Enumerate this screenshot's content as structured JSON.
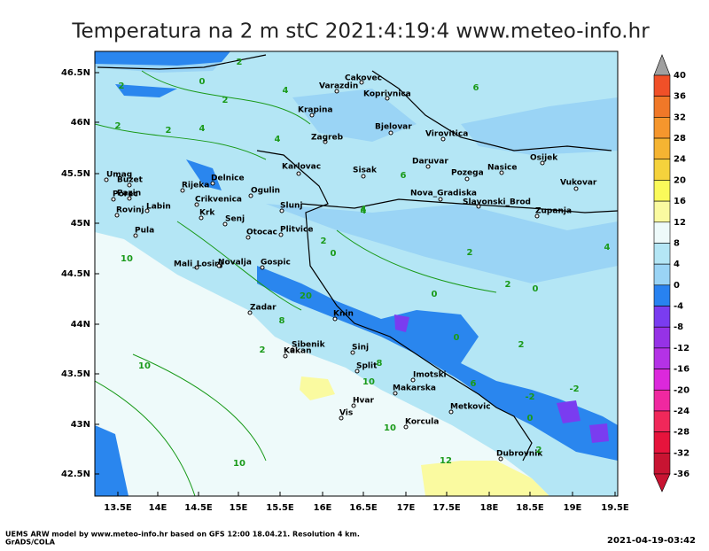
{
  "header": {
    "title": "Temperatura na 2 m stC 2021:4:19:4 www.meteo-info.hr"
  },
  "map": {
    "lon_ticks": [
      "13.5E",
      "14E",
      "14.5E",
      "15E",
      "15.5E",
      "16E",
      "16.5E",
      "17E",
      "17.5E",
      "18E",
      "18.5E",
      "19E",
      "19.5E"
    ],
    "lat_ticks": [
      "46.5N",
      "46N",
      "45.5N",
      "45N",
      "44.5N",
      "44N",
      "43.5N",
      "43N",
      "42.5N"
    ],
    "cities": [
      "Cakovec",
      "Varazdin",
      "Koprivnica",
      "Krapina",
      "Zagreb",
      "Bjelovar",
      "Virovitica",
      "Osijek",
      "Karlovac",
      "Sisak",
      "Daruvar",
      "Pozega",
      "Nasice",
      "Vukovar",
      "Umag",
      "Buzet",
      "Porec",
      "Pazin",
      "Rovinj",
      "Labin",
      "Rijeka",
      "Delnice",
      "Ogulin",
      "Crikvenica",
      "Krk",
      "Senj",
      "Nova_Gradiska",
      "Slavonski_Brod",
      "Zupanja",
      "Slunj",
      "Otocac",
      "Plitvice",
      "Pula",
      "Mali_Losinj",
      "Novalja",
      "Gospic",
      "Zadar",
      "Knin",
      "Sibenik",
      "Kakan",
      "Sinj",
      "Split",
      "Imotski",
      "Makarska",
      "Hvar",
      "Vis",
      "Metkovic",
      "Korcula",
      "Dubrovnik"
    ],
    "contour_labels": [
      2,
      0,
      2,
      4,
      2,
      4,
      6,
      4,
      6,
      4,
      2,
      2,
      0,
      2,
      10,
      10,
      10,
      20,
      8,
      2,
      0,
      2,
      0,
      2,
      0,
      -2,
      -2,
      0,
      2,
      4,
      6,
      12,
      10,
      10,
      8,
      2,
      4
    ]
  },
  "colorbar": {
    "levels": [
      40,
      36,
      32,
      28,
      24,
      20,
      16,
      12,
      8,
      4,
      0,
      -4,
      -8,
      -12,
      -16,
      -20,
      -24,
      -28,
      -32,
      -36
    ],
    "colors": [
      "#a0a0a0",
      "#f05028",
      "#f07828",
      "#f5962d",
      "#f5b432",
      "#f5d23c",
      "#fafa5a",
      "#fafaa0",
      "#eefafa",
      "#b4e6f5",
      "#9ad4f5",
      "#2882f0",
      "#7a3cf0",
      "#9632e6",
      "#b432e6",
      "#dc28dc",
      "#f028a0",
      "#f0285a",
      "#e6143c",
      "#c81432",
      "#c81432"
    ]
  },
  "footer": {
    "credit": "UEMS ARW model by www.meteo-info.hr based on GFS 12:00 18.04.21. Resolution 4 km.",
    "software": "GrADS/COLA",
    "timestamp": "2021-04-19-03:42"
  }
}
